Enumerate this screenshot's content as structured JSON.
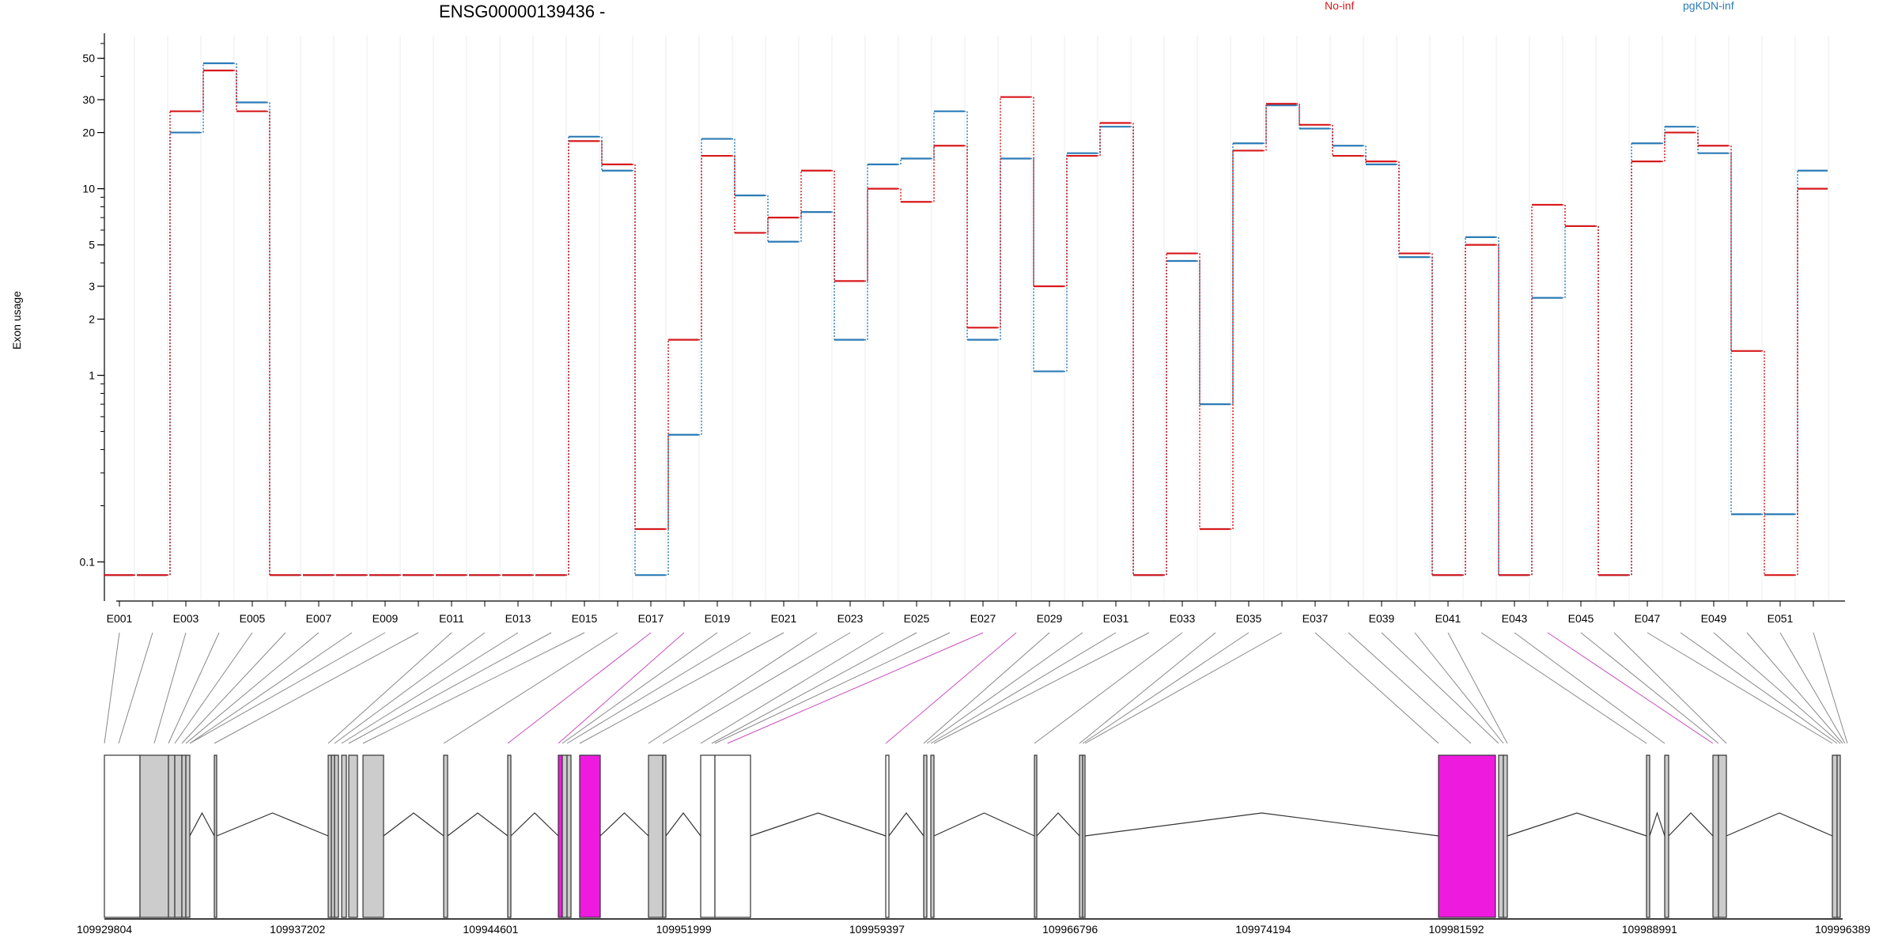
{
  "title": "ENSG00000139436 -",
  "ylabel": "Exon usage",
  "legend": [
    {
      "name": "No-inf",
      "color": "#d7191c"
    },
    {
      "name": "pgKDN-inf",
      "color": "#2c7bb6"
    }
  ],
  "gene_coordinates": [
    "109929804",
    "109937202",
    "109944601",
    "109951999",
    "109959397",
    "109966796",
    "109974194",
    "109981592",
    "109988991",
    "109996389"
  ],
  "chart_data": {
    "type": "line",
    "title": "ENSG00000139436 -",
    "ylabel": "Exon usage",
    "yscale": "log",
    "ylim": [
      0.075,
      60
    ],
    "yticks": [
      0.1,
      1,
      2,
      3,
      5,
      10,
      20,
      30,
      50
    ],
    "ytick_labels": [
      "0.1",
      "1",
      "2",
      "3",
      "5",
      "10",
      "20",
      "30",
      "50"
    ],
    "categories": [
      "E001",
      "E002",
      "E003",
      "E004",
      "E005",
      "E006",
      "E007",
      "E008",
      "E009",
      "E010",
      "E011",
      "E012",
      "E013",
      "E014",
      "E015",
      "E016",
      "E017",
      "E018",
      "E019",
      "E020",
      "E021",
      "E022",
      "E023",
      "E024",
      "E025",
      "E026",
      "E027",
      "E028",
      "E029",
      "E030",
      "E031",
      "E032",
      "E033",
      "E034",
      "E035",
      "E036",
      "E037",
      "E038",
      "E039",
      "E040",
      "E041",
      "E042",
      "E043",
      "E044",
      "E045",
      "E046",
      "E047",
      "E048",
      "E049",
      "E050",
      "E051",
      "E052"
    ],
    "xtick_labels": [
      "E001",
      "E003",
      "E005",
      "E007",
      "E009",
      "E011",
      "E013",
      "E015",
      "E017",
      "E019",
      "E021",
      "E023",
      "E025",
      "E027",
      "E029",
      "E031",
      "E033",
      "E035",
      "E037",
      "E039",
      "E041",
      "E043",
      "E045",
      "E047",
      "E049",
      "E051"
    ],
    "series": [
      {
        "name": "No-inf",
        "color": "#d7191c",
        "values": [
          0.085,
          0.085,
          26,
          43,
          26,
          0.085,
          0.085,
          0.085,
          0.085,
          0.085,
          0.085,
          0.085,
          0.085,
          0.085,
          18,
          13.5,
          0.15,
          1.55,
          15,
          5.8,
          7,
          12.5,
          3.2,
          10,
          8.5,
          17,
          1.8,
          31,
          3,
          15,
          22.5,
          0.085,
          4.5,
          0.15,
          16,
          28.5,
          22,
          15,
          14,
          4.5,
          0.085,
          5,
          0.085,
          8.2,
          6.3,
          0.085,
          14,
          20,
          17,
          1.35,
          0.085,
          10
        ]
      },
      {
        "name": "pgKDN-inf",
        "color": "#2c7bb6",
        "values": [
          0.085,
          0.085,
          20,
          47,
          29,
          0.085,
          0.085,
          0.085,
          0.085,
          0.085,
          0.085,
          0.085,
          0.085,
          0.085,
          19,
          12.5,
          0.085,
          0.48,
          18.5,
          9.2,
          5.2,
          7.5,
          1.55,
          13.5,
          14.5,
          26,
          1.55,
          14.5,
          1.05,
          15.5,
          21.5,
          0.085,
          4.1,
          0.7,
          17.5,
          28,
          21,
          17,
          13.5,
          4.3,
          0.085,
          5.5,
          0.085,
          2.6,
          6.3,
          0.085,
          17.5,
          21.5,
          15.5,
          0.18,
          0.18,
          12.5
        ]
      }
    ]
  }
}
